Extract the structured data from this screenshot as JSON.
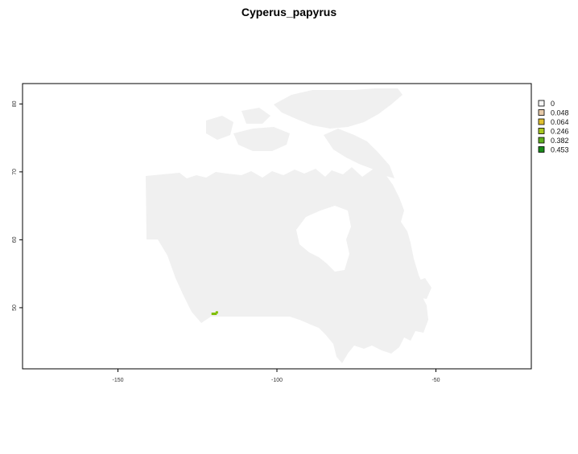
{
  "title": "Cyperus_papyrus",
  "map": {
    "x_range": [
      -180,
      -20
    ],
    "y_range": [
      41,
      83
    ],
    "x_ticks": [
      -150,
      -100,
      -50
    ],
    "y_ticks": [
      50,
      60,
      70,
      80
    ],
    "landmass_color": "#f0f0f0",
    "presence_color": "#7fbf00",
    "presence_cells": [
      {
        "lon": -120.2,
        "lat": 49.1
      },
      {
        "lon": -119.8,
        "lat": 49.1
      },
      {
        "lon": -119.3,
        "lat": 49.1
      },
      {
        "lon": -118.9,
        "lat": 49.3
      }
    ]
  },
  "legend": {
    "placement": "right",
    "entries": [
      {
        "label": "0",
        "color": "#f5f5f5"
      },
      {
        "label": "0.048",
        "color": "#e6c9a8"
      },
      {
        "label": "0.064",
        "color": "#e0c030"
      },
      {
        "label": "0.246",
        "color": "#a8c820"
      },
      {
        "label": "0.382",
        "color": "#60b020"
      },
      {
        "label": "0.453",
        "color": "#1a8a1a"
      }
    ]
  }
}
